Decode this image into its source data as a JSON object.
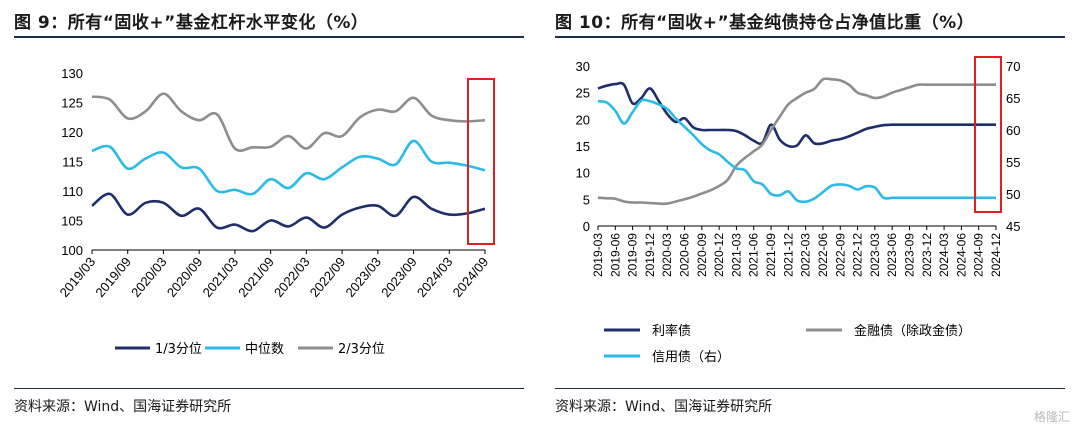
{
  "left_figure": {
    "title": "图 9：所有“固收+”基金杠杆水平变化（%）",
    "source": "资料来源：Wind、国海证券研究所"
  },
  "right_figure": {
    "title": "图 10：所有“固收+”基金纯债持仓占净值比重（%）",
    "source": "资料来源：Wind、国海证券研究所"
  },
  "watermark": "格隆汇",
  "colors": {
    "navy": "#1f2f6b",
    "cyan": "#2bbbe8",
    "gray": "#8e8e8e",
    "red": "#e02020",
    "rule": "#1f2d4d"
  },
  "chart_data": [
    {
      "type": "line",
      "title": "所有“固收+”基金杠杆水平变化（%）",
      "xlabel": "",
      "ylabel": "",
      "ylim": [
        100,
        130
      ],
      "yticks": [
        "100",
        "105",
        "110",
        "115",
        "120",
        "125",
        "130"
      ],
      "x_tick_labels": [
        "2019/03",
        "2019/09",
        "2020/03",
        "2020/09",
        "2021/03",
        "2021/09",
        "2022/03",
        "2022/09",
        "2023/03",
        "2023/09",
        "2024/03",
        "2024/09"
      ],
      "x": [
        0,
        0.5,
        1,
        1.5,
        2,
        2.5,
        3,
        3.5,
        4,
        4.5,
        5,
        5.5,
        6,
        6.5,
        7,
        7.5,
        8,
        8.5,
        9,
        9.5,
        10,
        10.5,
        11
      ],
      "series": [
        {
          "name": "1/3分位",
          "color": "#1f2f6b",
          "values": [
            107.5,
            109.5,
            106,
            108,
            108,
            105.8,
            107,
            103.8,
            104.3,
            103.2,
            105,
            104,
            105.5,
            103.8,
            106,
            107.2,
            107.5,
            105.8,
            109,
            107,
            106,
            106.2,
            107
          ]
        },
        {
          "name": "中位数",
          "color": "#2bbbe8",
          "values": [
            116.8,
            117.5,
            113.8,
            115.5,
            116.5,
            114,
            113.8,
            110,
            110.2,
            109.5,
            112,
            110.5,
            113,
            112,
            114,
            115.8,
            115.5,
            114.5,
            118.5,
            115,
            114.8,
            114.3,
            113.5
          ]
        },
        {
          "name": "2/3分位",
          "color": "#8e8e8e",
          "values": [
            126,
            125.5,
            122.3,
            123.5,
            126.5,
            123.5,
            122,
            123,
            117.2,
            117.4,
            117.5,
            119.3,
            117.2,
            119.8,
            119.3,
            122.5,
            123.8,
            123.5,
            125.8,
            122.8,
            122,
            121.8,
            122
          ]
        }
      ],
      "legend": {
        "placement": "bottom",
        "entries": [
          "1/3分位",
          "中位数",
          "2/3分位"
        ]
      },
      "highlight_box": {
        "x_range": [
          10.5,
          11
        ],
        "color": "#e02020"
      }
    },
    {
      "type": "line",
      "title": "所有“固收+”基金纯债持仓占净值比重（%）",
      "ylim": [
        0,
        30
      ],
      "yticks": [
        "0",
        "5",
        "10",
        "15",
        "20",
        "25",
        "30"
      ],
      "y2lim": [
        45,
        70
      ],
      "y2ticks": [
        "45",
        "50",
        "55",
        "60",
        "65",
        "70"
      ],
      "x_tick_labels": [
        "2019-03",
        "2019-06",
        "2019-09",
        "2019-12",
        "2020-03",
        "2020-06",
        "2020-09",
        "2020-12",
        "2021-03",
        "2021-06",
        "2021-09",
        "2021-12",
        "2022-03",
        "2022-06",
        "2022-09",
        "2022-12",
        "2023-03",
        "2023-06",
        "2023-09",
        "2023-12",
        "2024-03",
        "2024-06",
        "2024-09",
        "2024-12"
      ],
      "x": [
        0,
        0.5,
        1,
        1.5,
        2,
        2.5,
        3,
        3.5,
        4,
        4.5,
        5,
        5.5,
        6,
        6.5,
        7,
        7.5,
        8,
        8.5,
        9,
        9.5,
        10,
        10.5,
        11,
        11.5,
        12,
        12.5,
        13,
        13.5,
        14,
        14.5,
        15,
        15.5,
        16,
        16.5,
        17,
        17.5,
        18,
        18.5,
        19,
        19.5,
        20,
        20.5,
        21,
        21.5,
        22,
        22.5,
        23
      ],
      "series": [
        {
          "name": "利率债",
          "axis": "left",
          "color": "#1f2f6b",
          "values": [
            25.8,
            26.3,
            26.6,
            26.5,
            23,
            24,
            25.8,
            23.5,
            21,
            19.5,
            20.2,
            18.5,
            18,
            18,
            18,
            18,
            17.8,
            17,
            16,
            15.6,
            19,
            16.2,
            15,
            15.1,
            17,
            15.5,
            15.5,
            16,
            16.3,
            16.8,
            17.5,
            18.2,
            18.6,
            18.9,
            19,
            19,
            19,
            19,
            19,
            19,
            19,
            19,
            19,
            19,
            19,
            19,
            19
          ]
        },
        {
          "name": "金融债（除政金债）",
          "axis": "left",
          "color": "#8e8e8e",
          "values": [
            5.3,
            5.2,
            5.1,
            4.6,
            4.4,
            4.4,
            4.3,
            4.2,
            4.2,
            4.6,
            5,
            5.5,
            6.1,
            6.7,
            7.5,
            8.7,
            11.3,
            12.8,
            14,
            15.3,
            18,
            20.5,
            22.8,
            24,
            25,
            25.7,
            27.5,
            27.5,
            27.3,
            26.5,
            25,
            24.5,
            24,
            24.3,
            25,
            25.5,
            26,
            26.5,
            26.5,
            26.5,
            26.5,
            26.5,
            26.5,
            26.5,
            26.5,
            26.5,
            26.5
          ]
        },
        {
          "name": "信用债（右）",
          "axis": "right",
          "color": "#2bbbe8",
          "values": [
            64.5,
            64.3,
            63,
            61,
            62.8,
            64.6,
            64.5,
            64,
            63.3,
            61.8,
            60.5,
            59.2,
            57.8,
            56.8,
            56.2,
            55,
            54,
            53.7,
            52,
            51.5,
            50,
            49.8,
            50.4,
            49,
            48.8,
            49.3,
            50.3,
            51.3,
            51.5,
            51.3,
            50.7,
            51.2,
            51,
            49.4,
            49.4,
            49.4,
            49.4,
            49.4,
            49.4,
            49.4,
            49.4,
            49.4,
            49.4,
            49.4,
            49.4,
            49.4,
            49.4
          ]
        }
      ],
      "legend": {
        "placement": "bottom",
        "entries": [
          "利率债",
          "金融债（除政金债）",
          "信用债（右）"
        ]
      },
      "highlight_box": {
        "x_range": [
          22.5,
          23
        ],
        "color": "#e02020"
      }
    }
  ]
}
